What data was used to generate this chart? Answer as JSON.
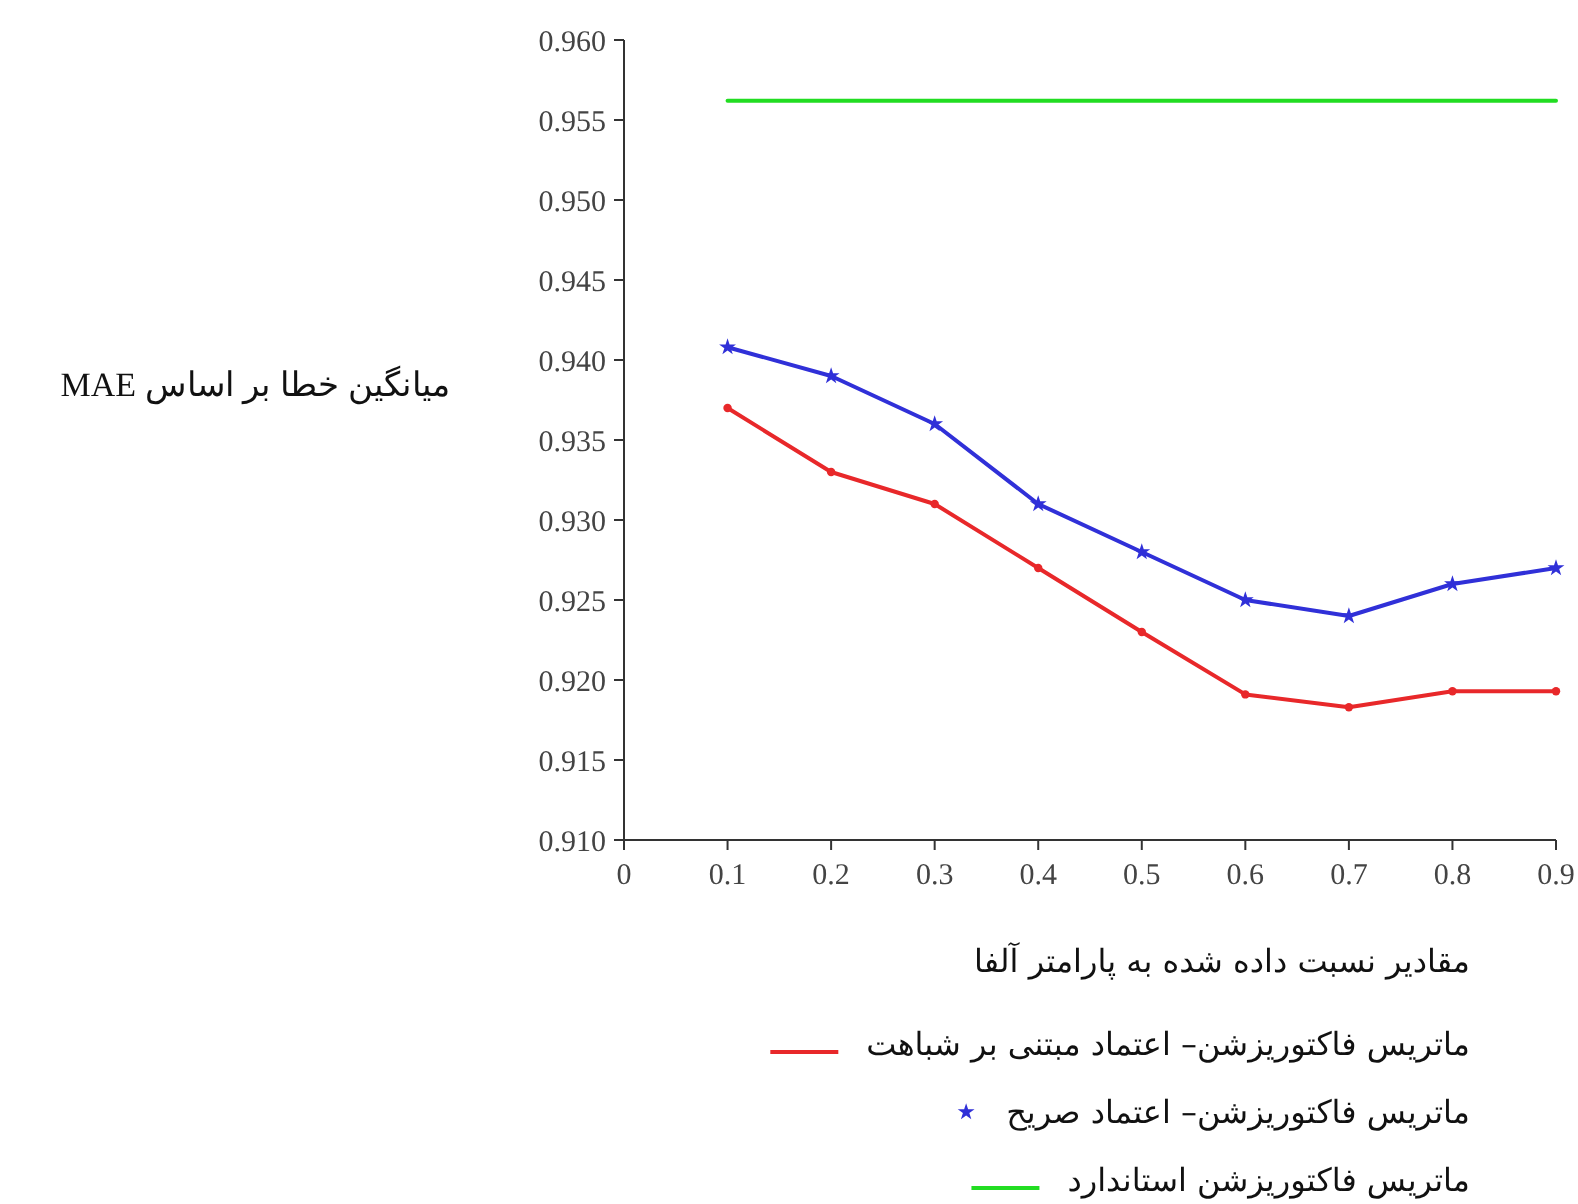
{
  "chart_data": {
    "type": "line",
    "xlabel": "مقادیر نسبت داده شده به پارامتر آلفا",
    "ylabel": "میانگین خطا بر اساس MAE",
    "x": [
      0.1,
      0.2,
      0.3,
      0.4,
      0.5,
      0.6,
      0.7,
      0.8,
      0.9
    ],
    "xlim": [
      0,
      0.9
    ],
    "xticks": [
      0,
      0.1,
      0.2,
      0.3,
      0.4,
      0.5,
      0.6,
      0.7,
      0.8,
      0.9
    ],
    "ylim": [
      0.91,
      0.96
    ],
    "yticks": [
      {
        "value": 0.91,
        "label": "0.910"
      },
      {
        "value": 0.915,
        "label": "0.915"
      },
      {
        "value": 0.92,
        "label": "0.920"
      },
      {
        "value": 0.925,
        "label": "0.925"
      },
      {
        "value": 0.93,
        "label": "0.930"
      },
      {
        "value": 0.935,
        "label": "0.935"
      },
      {
        "value": 0.94,
        "label": "0.940"
      },
      {
        "value": 0.945,
        "label": "0.945"
      },
      {
        "value": 0.95,
        "label": "0.950"
      },
      {
        "value": 0.955,
        "label": "0.955"
      },
      {
        "value": 0.96,
        "label": "0.960"
      }
    ],
    "grid": false,
    "legend": "bottom",
    "series": [
      {
        "name": "ماتریس فاکتوریزشن– اعتماد مبتنی بر شباهت",
        "color": "#e8282a",
        "marker": "circle",
        "values": [
          0.937,
          0.933,
          0.931,
          0.927,
          0.923,
          0.9191,
          0.9183,
          0.9193,
          0.9193
        ]
      },
      {
        "name": "ماتریس فاکتوریزشن– اعتماد صریح",
        "color": "#3030d8",
        "marker": "star",
        "values": [
          0.9408,
          0.939,
          0.936,
          0.931,
          0.928,
          0.925,
          0.924,
          0.926,
          0.927
        ]
      },
      {
        "name": "ماتریس فاکتوریزشن استاندارد",
        "color": "#22dd22",
        "marker": "none",
        "values": [
          0.9562,
          0.9562,
          0.9562,
          0.9562,
          0.9562,
          0.9562,
          0.9562,
          0.9562,
          0.9562
        ]
      }
    ]
  }
}
